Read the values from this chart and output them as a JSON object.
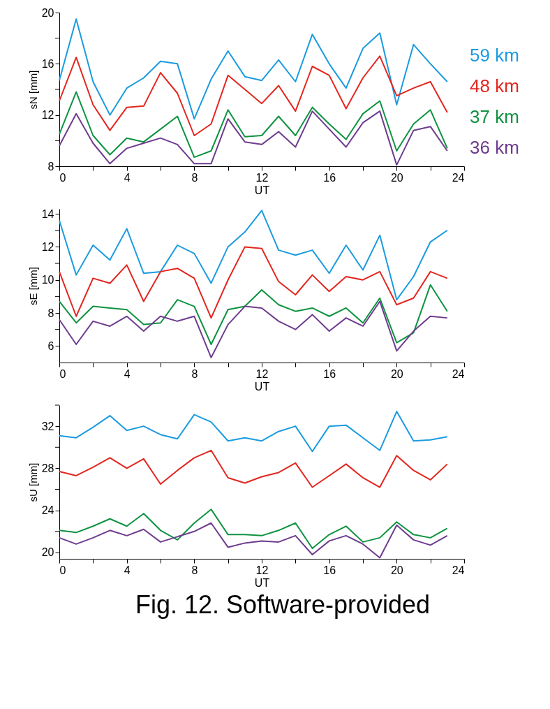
{
  "chart_data": [
    {
      "type": "line",
      "xlabel": "UT",
      "ylabel": "sN [mm]",
      "x": [
        0,
        1,
        2,
        3,
        4,
        5,
        6,
        7,
        8,
        9,
        10,
        11,
        12,
        13,
        14,
        15,
        16,
        17,
        18,
        19,
        20,
        21,
        22,
        23
      ],
      "xlim": [
        0,
        24
      ],
      "xticks": [
        0,
        {
          "value": 2,
          "label": null
        },
        4,
        {
          "value": 6,
          "label": null
        },
        8,
        {
          "value": 10,
          "label": null
        },
        12,
        {
          "value": 14,
          "label": null
        },
        16,
        {
          "value": 18,
          "label": null
        },
        20,
        {
          "value": 22,
          "label": null
        },
        24
      ],
      "ylim": [
        8,
        20
      ],
      "yticks": [
        8,
        {
          "value": 10,
          "label": null
        },
        12,
        {
          "value": 14,
          "label": null
        },
        16,
        {
          "value": 18,
          "label": null
        },
        20
      ],
      "grid": false,
      "line_style": "solid",
      "marker": "none",
      "series": [
        {
          "name": "59 km",
          "color": "#1a9be0",
          "values": [
            14.7,
            19.5,
            14.6,
            12.0,
            14.1,
            14.9,
            16.2,
            16.0,
            11.7,
            14.8,
            17.0,
            15.0,
            14.7,
            16.3,
            14.6,
            18.3,
            16.0,
            14.1,
            17.2,
            18.4,
            12.8,
            17.5,
            16.0,
            14.6
          ]
        },
        {
          "name": "48 km",
          "color": "#e3261f",
          "values": [
            13.1,
            16.5,
            12.8,
            10.8,
            12.6,
            12.7,
            15.3,
            13.7,
            10.4,
            11.3,
            15.1,
            14.0,
            12.9,
            14.3,
            12.3,
            15.8,
            15.1,
            12.5,
            14.9,
            16.6,
            13.5,
            14.1,
            14.6,
            12.2
          ]
        },
        {
          "name": "37 km",
          "color": "#0e9341",
          "values": [
            10.5,
            13.8,
            10.4,
            8.9,
            10.2,
            9.9,
            10.9,
            11.9,
            8.7,
            9.2,
            12.4,
            10.3,
            10.4,
            11.9,
            10.4,
            12.6,
            11.3,
            10.1,
            12.1,
            13.1,
            9.2,
            11.3,
            12.4,
            9.4
          ]
        },
        {
          "name": "36 km",
          "color": "#6e3c8e",
          "values": [
            9.6,
            12.1,
            9.8,
            8.2,
            9.4,
            9.8,
            10.2,
            9.7,
            8.2,
            8.2,
            11.7,
            9.9,
            9.7,
            10.7,
            9.5,
            12.3,
            10.9,
            9.5,
            11.4,
            12.3,
            8.1,
            10.8,
            11.1,
            9.2
          ]
        }
      ]
    },
    {
      "type": "line",
      "xlabel": "UT",
      "ylabel": "sE [mm]",
      "x": [
        0,
        1,
        2,
        3,
        4,
        5,
        6,
        7,
        8,
        9,
        10,
        11,
        12,
        13,
        14,
        15,
        16,
        17,
        18,
        19,
        20,
        21,
        22,
        23
      ],
      "xlim": [
        0,
        24
      ],
      "xticks": [
        0,
        {
          "value": 2,
          "label": null
        },
        4,
        {
          "value": 6,
          "label": null
        },
        8,
        {
          "value": 10,
          "label": null
        },
        12,
        {
          "value": 14,
          "label": null
        },
        16,
        {
          "value": 18,
          "label": null
        },
        20,
        {
          "value": 22,
          "label": null
        },
        24
      ],
      "ylim": [
        5,
        14.3
      ],
      "yticks": [
        6,
        {
          "value": 7,
          "label": null
        },
        8,
        {
          "value": 9,
          "label": null
        },
        10,
        {
          "value": 11,
          "label": null
        },
        12,
        {
          "value": 13,
          "label": null
        },
        14
      ],
      "grid": false,
      "line_style": "solid",
      "marker": "none",
      "series": [
        {
          "color": "#1a9be0",
          "values": [
            13.6,
            10.3,
            12.1,
            11.2,
            13.1,
            10.4,
            10.5,
            12.1,
            11.6,
            9.8,
            12.0,
            12.9,
            14.2,
            11.8,
            11.5,
            11.8,
            10.4,
            12.1,
            10.6,
            12.7,
            8.8,
            10.2,
            12.3,
            13.0
          ]
        },
        {
          "color": "#e3261f",
          "values": [
            10.5,
            7.8,
            10.1,
            9.8,
            10.9,
            8.7,
            10.5,
            10.7,
            10.1,
            7.7,
            10.0,
            12.0,
            11.9,
            9.9,
            9.1,
            10.3,
            9.3,
            10.2,
            10.0,
            10.5,
            8.5,
            8.9,
            10.5,
            10.1
          ]
        },
        {
          "color": "#0e9341",
          "values": [
            8.7,
            7.4,
            8.4,
            8.3,
            8.2,
            7.3,
            7.4,
            8.8,
            8.4,
            6.1,
            8.2,
            8.4,
            9.4,
            8.5,
            8.1,
            8.3,
            7.8,
            8.3,
            7.4,
            8.9,
            6.2,
            6.8,
            9.7,
            8.1
          ]
        },
        {
          "color": "#6e3c8e",
          "values": [
            7.6,
            6.1,
            7.5,
            7.2,
            7.8,
            6.9,
            7.8,
            7.5,
            7.8,
            5.3,
            7.3,
            8.4,
            8.3,
            7.5,
            7.0,
            7.9,
            6.9,
            7.7,
            7.2,
            8.7,
            5.7,
            6.9,
            7.8,
            7.7
          ]
        }
      ]
    },
    {
      "type": "line",
      "xlabel": "UT",
      "ylabel": "sU [mm]",
      "x": [
        0,
        1,
        2,
        3,
        4,
        5,
        6,
        7,
        8,
        9,
        10,
        11,
        12,
        13,
        14,
        15,
        16,
        17,
        18,
        19,
        20,
        21,
        22,
        23
      ],
      "xlim": [
        0,
        24
      ],
      "xticks": [
        0,
        {
          "value": 2,
          "label": null
        },
        4,
        {
          "value": 6,
          "label": null
        },
        8,
        {
          "value": 10,
          "label": null
        },
        12,
        {
          "value": 14,
          "label": null
        },
        16,
        {
          "value": 18,
          "label": null
        },
        20,
        {
          "value": 22,
          "label": null
        },
        24
      ],
      "ylim": [
        19.4,
        34
      ],
      "yticks": [
        20,
        {
          "value": 22,
          "label": null
        },
        24,
        {
          "value": 26,
          "label": null
        },
        28,
        {
          "value": 30,
          "label": null
        },
        32,
        {
          "value": 34,
          "label": null
        }
      ],
      "grid": false,
      "line_style": "solid",
      "marker": "none",
      "annotations": [
        "Fig. 12.  Software-provided"
      ],
      "series": [
        {
          "color": "#1a9be0",
          "values": [
            31.1,
            30.9,
            31.9,
            33.0,
            31.6,
            32.0,
            31.2,
            30.8,
            33.1,
            32.4,
            30.6,
            30.9,
            30.6,
            31.5,
            32.0,
            29.6,
            32.0,
            32.1,
            30.9,
            29.7,
            33.4,
            30.6,
            30.7,
            31.0
          ]
        },
        {
          "color": "#e3261f",
          "values": [
            27.7,
            27.3,
            28.1,
            29.0,
            28.0,
            28.9,
            26.5,
            27.8,
            29.0,
            29.7,
            27.1,
            26.6,
            27.2,
            27.6,
            28.5,
            26.2,
            27.3,
            28.4,
            27.1,
            26.2,
            29.2,
            27.8,
            26.9,
            28.4
          ]
        },
        {
          "color": "#0e9341",
          "values": [
            22.1,
            21.9,
            22.5,
            23.2,
            22.5,
            23.7,
            22.1,
            21.2,
            22.8,
            24.1,
            21.7,
            21.7,
            21.6,
            22.1,
            22.8,
            20.4,
            21.7,
            22.5,
            21.0,
            21.4,
            22.9,
            21.7,
            21.4,
            22.3
          ]
        },
        {
          "color": "#6e3c8e",
          "values": [
            21.4,
            20.8,
            21.4,
            22.1,
            21.6,
            22.2,
            21.0,
            21.5,
            22.0,
            22.8,
            20.5,
            20.9,
            21.1,
            21.0,
            21.6,
            19.8,
            21.1,
            21.6,
            20.8,
            19.5,
            22.6,
            21.2,
            20.7,
            21.6
          ]
        }
      ]
    }
  ]
}
